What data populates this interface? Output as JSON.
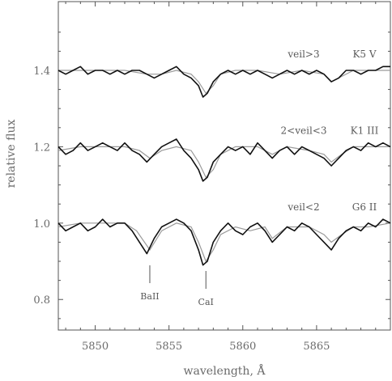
{
  "chart_data": {
    "type": "line",
    "title": "",
    "xlabel": "wavelength, Å",
    "ylabel": "relative flux",
    "xlim": [
      5847.5,
      5870.0
    ],
    "ylim": [
      0.72,
      1.58
    ],
    "xticks": [
      5850,
      5855,
      5860,
      5865
    ],
    "xtick_labels": [
      "5850",
      "5855",
      "5860",
      "5865"
    ],
    "yticks": [
      0.8,
      1.0,
      1.2,
      1.4
    ],
    "ytick_labels": [
      "0.8",
      "1.0",
      "1.2",
      "1.4"
    ],
    "grid": false,
    "legend": "none",
    "spectra": [
      {
        "veil_label": "veil>3",
        "star_label": "K5 V",
        "offset": 1.4,
        "observed_color": "#111111",
        "model_color": "#9a9a9a",
        "observed": {
          "x": [
            5847.5,
            5848.0,
            5848.5,
            5849.0,
            5849.5,
            5850.0,
            5850.5,
            5851.0,
            5851.5,
            5852.0,
            5852.5,
            5853.0,
            5853.5,
            5854.0,
            5854.5,
            5855.0,
            5855.5,
            5856.0,
            5856.5,
            5857.0,
            5857.3,
            5857.6,
            5858.0,
            5858.5,
            5859.0,
            5859.5,
            5860.0,
            5860.5,
            5861.0,
            5861.5,
            5862.0,
            5862.5,
            5863.0,
            5863.5,
            5864.0,
            5864.5,
            5865.0,
            5865.5,
            5866.0,
            5866.5,
            5867.0,
            5867.5,
            5868.0,
            5868.5,
            5869.0,
            5869.5,
            5870.0
          ],
          "y": [
            1.4,
            1.39,
            1.4,
            1.41,
            1.39,
            1.4,
            1.4,
            1.39,
            1.4,
            1.39,
            1.4,
            1.4,
            1.39,
            1.38,
            1.39,
            1.4,
            1.41,
            1.39,
            1.38,
            1.36,
            1.33,
            1.34,
            1.37,
            1.39,
            1.4,
            1.39,
            1.4,
            1.39,
            1.4,
            1.39,
            1.38,
            1.39,
            1.4,
            1.39,
            1.4,
            1.39,
            1.4,
            1.39,
            1.37,
            1.38,
            1.4,
            1.4,
            1.39,
            1.4,
            1.4,
            1.41,
            1.41
          ]
        },
        "model": {
          "x": [
            5847.5,
            5849.0,
            5850.5,
            5852.0,
            5853.5,
            5854.5,
            5855.5,
            5856.5,
            5857.0,
            5857.5,
            5858.0,
            5858.5,
            5859.5,
            5861.0,
            5862.5,
            5864.0,
            5865.5,
            5866.0,
            5866.5,
            5867.5,
            5868.5,
            5870.0
          ],
          "y": [
            1.4,
            1.4,
            1.4,
            1.4,
            1.39,
            1.39,
            1.4,
            1.39,
            1.37,
            1.34,
            1.36,
            1.39,
            1.4,
            1.4,
            1.39,
            1.4,
            1.39,
            1.37,
            1.38,
            1.4,
            1.4,
            1.4
          ]
        }
      },
      {
        "veil_label": "2<veil<3",
        "star_label": "K1 III",
        "offset": 1.2,
        "observed_color": "#111111",
        "model_color": "#9a9a9a",
        "observed": {
          "x": [
            5847.5,
            5848.0,
            5848.5,
            5849.0,
            5849.5,
            5850.0,
            5850.5,
            5851.0,
            5851.5,
            5852.0,
            5852.5,
            5853.0,
            5853.5,
            5854.0,
            5854.5,
            5855.0,
            5855.5,
            5856.0,
            5856.5,
            5857.0,
            5857.3,
            5857.6,
            5858.0,
            5858.5,
            5859.0,
            5859.5,
            5860.0,
            5860.5,
            5861.0,
            5861.5,
            5862.0,
            5862.5,
            5863.0,
            5863.5,
            5864.0,
            5864.5,
            5865.0,
            5865.5,
            5866.0,
            5866.5,
            5867.0,
            5867.5,
            5868.0,
            5868.5,
            5869.0,
            5869.5,
            5870.0
          ],
          "y": [
            1.2,
            1.18,
            1.19,
            1.21,
            1.19,
            1.2,
            1.21,
            1.2,
            1.19,
            1.21,
            1.19,
            1.18,
            1.16,
            1.18,
            1.2,
            1.21,
            1.22,
            1.19,
            1.17,
            1.14,
            1.11,
            1.12,
            1.16,
            1.18,
            1.2,
            1.19,
            1.2,
            1.18,
            1.21,
            1.19,
            1.17,
            1.19,
            1.2,
            1.18,
            1.2,
            1.19,
            1.18,
            1.17,
            1.15,
            1.17,
            1.19,
            1.2,
            1.19,
            1.21,
            1.2,
            1.21,
            1.2
          ]
        },
        "model": {
          "x": [
            5847.5,
            5849.0,
            5850.5,
            5852.0,
            5853.0,
            5853.7,
            5854.5,
            5855.5,
            5856.5,
            5857.0,
            5857.5,
            5858.0,
            5858.5,
            5859.5,
            5861.0,
            5862.0,
            5863.0,
            5864.5,
            5865.5,
            5866.0,
            5866.7,
            5867.5,
            5868.5,
            5870.0
          ],
          "y": [
            1.19,
            1.2,
            1.2,
            1.2,
            1.19,
            1.17,
            1.19,
            1.2,
            1.19,
            1.16,
            1.12,
            1.14,
            1.18,
            1.2,
            1.2,
            1.18,
            1.2,
            1.19,
            1.18,
            1.16,
            1.18,
            1.2,
            1.2,
            1.2
          ]
        }
      },
      {
        "veil_label": "veil<2",
        "star_label": "G6 II",
        "offset": 1.0,
        "observed_color": "#111111",
        "model_color": "#9a9a9a",
        "observed": {
          "x": [
            5847.5,
            5848.0,
            5848.5,
            5849.0,
            5849.5,
            5850.0,
            5850.5,
            5851.0,
            5851.5,
            5852.0,
            5852.5,
            5853.0,
            5853.5,
            5854.0,
            5854.5,
            5855.0,
            5855.5,
            5856.0,
            5856.5,
            5857.0,
            5857.3,
            5857.6,
            5858.0,
            5858.5,
            5859.0,
            5859.5,
            5860.0,
            5860.5,
            5861.0,
            5861.5,
            5862.0,
            5862.5,
            5863.0,
            5863.5,
            5864.0,
            5864.5,
            5865.0,
            5865.5,
            5866.0,
            5866.5,
            5867.0,
            5867.5,
            5868.0,
            5868.5,
            5869.0,
            5869.5,
            5870.0
          ],
          "y": [
            1.0,
            0.98,
            0.99,
            1.0,
            0.98,
            0.99,
            1.01,
            0.99,
            1.0,
            1.0,
            0.98,
            0.95,
            0.92,
            0.96,
            0.99,
            1.0,
            1.01,
            1.0,
            0.98,
            0.93,
            0.89,
            0.9,
            0.95,
            0.98,
            1.0,
            0.98,
            0.97,
            0.99,
            1.0,
            0.98,
            0.95,
            0.97,
            0.99,
            0.98,
            1.0,
            0.99,
            0.97,
            0.95,
            0.93,
            0.96,
            0.98,
            0.99,
            0.98,
            1.0,
            0.99,
            1.01,
            1.0
          ]
        },
        "model": {
          "x": [
            5847.5,
            5849.0,
            5850.5,
            5852.0,
            5852.8,
            5853.7,
            5854.5,
            5855.5,
            5856.5,
            5857.0,
            5857.5,
            5858.0,
            5858.5,
            5859.5,
            5860.5,
            5861.5,
            5862.0,
            5863.0,
            5864.5,
            5865.5,
            5866.0,
            5866.7,
            5867.5,
            5868.5,
            5870.0
          ],
          "y": [
            0.99,
            1.0,
            1.0,
            1.0,
            0.98,
            0.93,
            0.98,
            1.0,
            0.99,
            0.95,
            0.9,
            0.93,
            0.97,
            0.99,
            0.98,
            0.99,
            0.96,
            0.99,
            0.99,
            0.97,
            0.95,
            0.97,
            0.99,
            0.99,
            1.0
          ]
        }
      }
    ],
    "annotations": [
      {
        "text": "BaII",
        "x": 5853.7
      },
      {
        "text": "CaI",
        "x": 5857.5
      }
    ]
  }
}
